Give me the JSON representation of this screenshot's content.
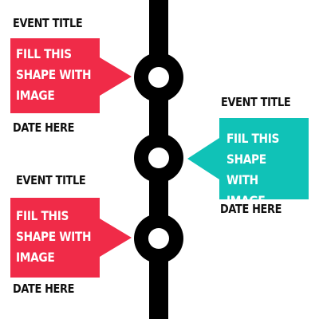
{
  "colors": {
    "left_callout": "#f02b48",
    "right_callout": "#10c2b7",
    "line": "#000000"
  },
  "events": [
    {
      "title": "EVENT TITLE",
      "body": "FILL THIS\nSHAPE WITH\nIMAGE",
      "date": "DATE HERE"
    },
    {
      "title": "EVENT TITLE",
      "body": "FIIL THIS\nSHAPE WITH\nIMAGE",
      "date": "DATE HERE"
    },
    {
      "title": "EVENT TITLE",
      "body": "FIIL THIS\nSHAPE WITH\nIMAGE",
      "date": "DATE HERE"
    }
  ]
}
